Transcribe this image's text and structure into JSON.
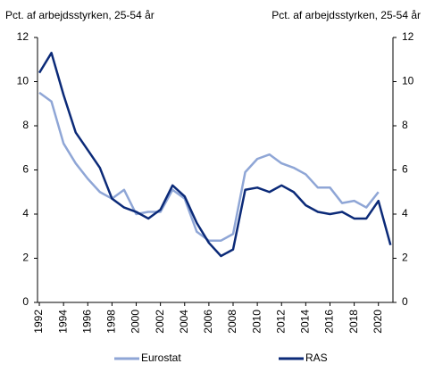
{
  "chart_data": {
    "type": "line",
    "y_label": "Pct. af arbejdsstyrken, 25-54 år",
    "y2_label": "Pct. af arbejdsstyrken, 25-54 år",
    "x": [
      1992,
      1993,
      1994,
      1995,
      1996,
      1997,
      1998,
      1999,
      2000,
      2001,
      2002,
      2003,
      2004,
      2005,
      2006,
      2007,
      2008,
      2009,
      2010,
      2011,
      2012,
      2013,
      2014,
      2015,
      2016,
      2017,
      2018,
      2019,
      2020,
      2021
    ],
    "xlim": [
      1991.85,
      2021.2
    ],
    "xticks": [
      1992,
      1994,
      1996,
      1998,
      2000,
      2002,
      2004,
      2006,
      2008,
      2010,
      2012,
      2014,
      2016,
      2018,
      2020
    ],
    "ylim": [
      0,
      12
    ],
    "yticks": [
      0,
      2,
      4,
      6,
      8,
      10,
      12
    ],
    "y2lim": [
      0,
      12
    ],
    "y2ticks": [
      0,
      2,
      4,
      6,
      8,
      10,
      12
    ],
    "series": [
      {
        "name": "Eurostat",
        "color": "#8fa6d6",
        "values": [
          9.5,
          9.1,
          7.2,
          6.3,
          5.6,
          5.0,
          4.7,
          5.1,
          4.0,
          4.1,
          4.1,
          5.1,
          4.7,
          3.2,
          2.8,
          2.8,
          3.1,
          5.9,
          6.5,
          6.7,
          6.3,
          6.1,
          5.8,
          5.2,
          5.2,
          4.5,
          4.6,
          4.3,
          5.0,
          null
        ]
      },
      {
        "name": "RAS",
        "color": "#0b2a78",
        "values": [
          10.4,
          11.3,
          9.4,
          7.7,
          6.9,
          6.1,
          4.7,
          4.3,
          4.1,
          3.8,
          4.2,
          5.3,
          4.8,
          3.6,
          2.7,
          2.1,
          2.4,
          5.1,
          5.2,
          5.0,
          5.3,
          5.0,
          4.4,
          4.1,
          4.0,
          4.1,
          3.8,
          3.8,
          4.6,
          2.6
        ]
      }
    ]
  }
}
